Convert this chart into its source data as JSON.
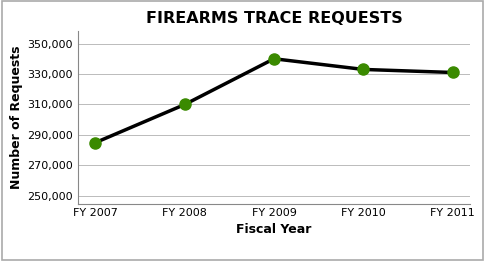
{
  "title": "FIREARMS TRACE REQUESTS",
  "xlabel": "Fiscal Year",
  "ylabel": "Number of Requests",
  "categories": [
    "FY 2007",
    "FY 2008",
    "FY 2009",
    "FY 2010",
    "FY 2011"
  ],
  "values": [
    285000,
    310000,
    340000,
    333000,
    331000
  ],
  "line_color": "#000000",
  "marker_color": "#3a8a00",
  "marker_size": 8,
  "line_width": 2.5,
  "ylim": [
    245000,
    358000
  ],
  "yticks": [
    250000,
    270000,
    290000,
    310000,
    330000,
    350000
  ],
  "title_fontsize": 11.5,
  "axis_label_fontsize": 9,
  "tick_fontsize": 8,
  "background_color": "#ffffff",
  "grid_color": "#bbbbbb",
  "border_color": "#aaaaaa"
}
